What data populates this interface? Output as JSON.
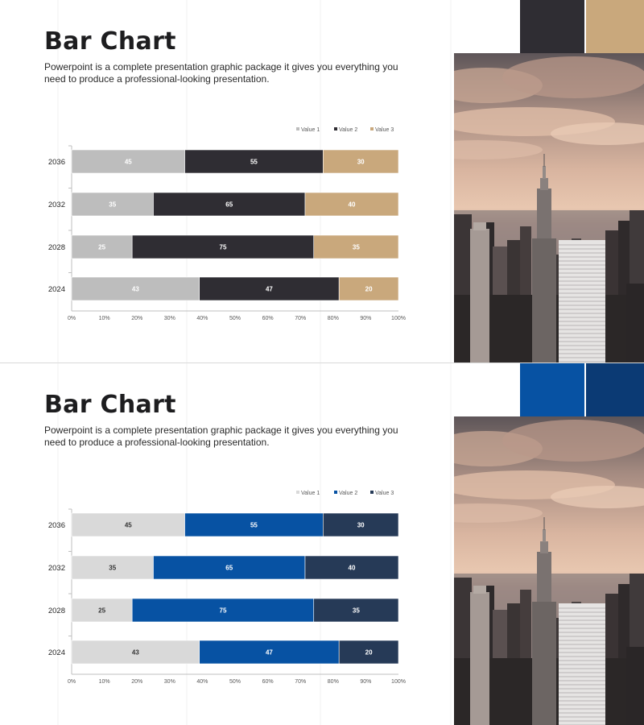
{
  "slides": [
    {
      "title": "Bar Chart",
      "description": "Powerpoint is a complete presentation graphic package it gives you everything you need to produce a professional-looking presentation.",
      "photo_icon": "city-skyline-photo",
      "swatches": [
        "#2f2d33",
        "#c9a87c"
      ],
      "chart_data": {
        "type": "bar",
        "orientation": "horizontal",
        "stacked": "percent",
        "categories": [
          "2024",
          "2028",
          "2032",
          "2036"
        ],
        "series": [
          {
            "name": "Value 1",
            "values": [
              43,
              25,
              35,
              45
            ],
            "color": "#bdbdbd",
            "label_color": "#ffffff"
          },
          {
            "name": "Value 2",
            "values": [
              47,
              75,
              65,
              55
            ],
            "color": "#2f2d33",
            "label_color": "#ffffff"
          },
          {
            "name": "Value 3",
            "values": [
              20,
              35,
              40,
              30
            ],
            "color": "#c9a87c",
            "label_color": "#ffffff"
          }
        ],
        "x_ticks": [
          "0%",
          "10%",
          "20%",
          "30%",
          "40%",
          "50%",
          "60%",
          "70%",
          "80%",
          "90%",
          "100%"
        ],
        "xlim": [
          0,
          100
        ],
        "legend_position": "top-right",
        "grid": false
      }
    },
    {
      "title": "Bar Chart",
      "description": "Powerpoint is a complete presentation graphic package it gives you everything you need to produce a professional-looking presentation.",
      "photo_icon": "city-skyline-photo",
      "swatches": [
        "#0752a3",
        "#0b3a74"
      ],
      "chart_data": {
        "type": "bar",
        "orientation": "horizontal",
        "stacked": "percent",
        "categories": [
          "2024",
          "2028",
          "2032",
          "2036"
        ],
        "series": [
          {
            "name": "Value 1",
            "values": [
              43,
              25,
              35,
              45
            ],
            "color": "#d9d9d9",
            "label_color": "#333333"
          },
          {
            "name": "Value 2",
            "values": [
              47,
              75,
              65,
              55
            ],
            "color": "#0752a3",
            "label_color": "#ffffff"
          },
          {
            "name": "Value 3",
            "values": [
              20,
              35,
              40,
              30
            ],
            "color": "#263a57",
            "label_color": "#ffffff"
          }
        ],
        "x_ticks": [
          "0%",
          "10%",
          "20%",
          "30%",
          "40%",
          "50%",
          "60%",
          "70%",
          "80%",
          "90%",
          "100%"
        ],
        "xlim": [
          0,
          100
        ],
        "legend_position": "top-right",
        "grid": false
      }
    }
  ]
}
